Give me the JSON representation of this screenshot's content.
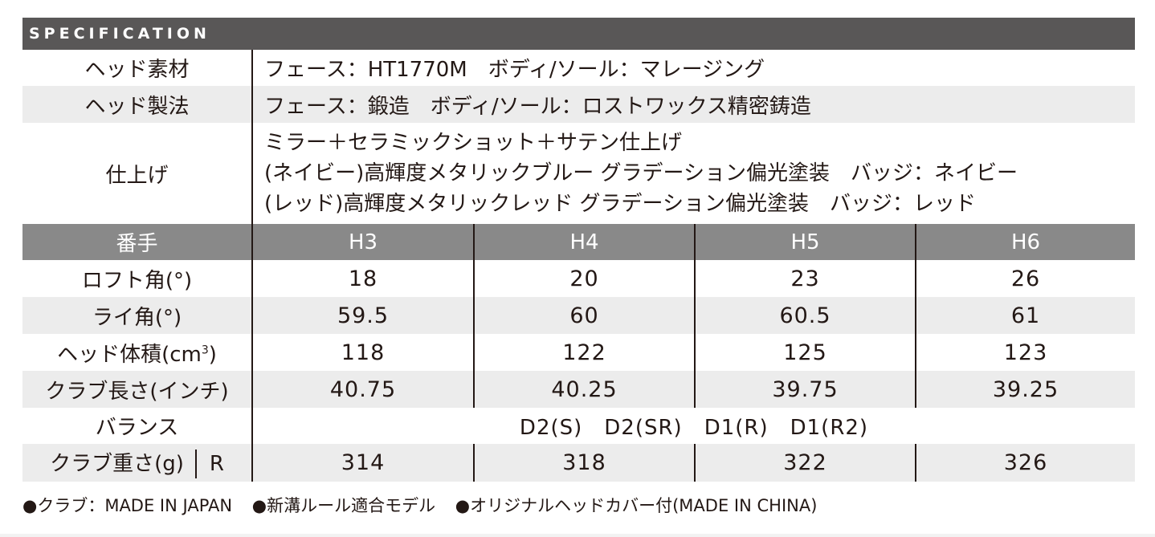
{
  "title": "SPECIFICATION",
  "head_material": {
    "label": "ヘッド素材",
    "value": "フェース：HT1770M　ボディ/ソール：マレージング"
  },
  "head_method": {
    "label": "ヘッド製法",
    "value": "フェース：鍛造　ボディ/ソール：ロストワックス精密鋳造"
  },
  "finish": {
    "label": "仕上げ",
    "lines": [
      "ミラー＋セラミックショット＋サテン仕上げ",
      "(ネイビー)高輝度メタリックブルー グラデーション偏光塗装　バッジ：ネイビー",
      "(レッド)高輝度メタリックレッド グラデーション偏光塗装　バッジ：レッド"
    ]
  },
  "numbers": {
    "label": "番手",
    "models": [
      "H3",
      "H4",
      "H5",
      "H6"
    ]
  },
  "loft": {
    "label": "ロフト角(°)",
    "values": [
      "18",
      "20",
      "23",
      "26"
    ]
  },
  "lie": {
    "label": "ライ角(°)",
    "values": [
      "59.5",
      "60",
      "60.5",
      "61"
    ]
  },
  "volume": {
    "label_main": "ヘッド体積(cm",
    "label_sup": "3",
    "label_end": ")",
    "values": [
      "118",
      "122",
      "125",
      "123"
    ]
  },
  "length": {
    "label": "クラブ長さ(インチ)",
    "values": [
      "40.75",
      "40.25",
      "39.75",
      "39.25"
    ]
  },
  "balance": {
    "label": "バランス",
    "value": "D2(S)　D2(SR)　D1(R)　D1(R2)"
  },
  "weight": {
    "label": "クラブ重さ(g)",
    "flex": "R",
    "values": [
      "314",
      "318",
      "322",
      "326"
    ]
  },
  "notes": [
    "●クラブ：MADE IN JAPAN",
    "●新溝ルール適合モデル",
    "●オリジナルヘッドカバー付(MADE IN CHINA)"
  ]
}
